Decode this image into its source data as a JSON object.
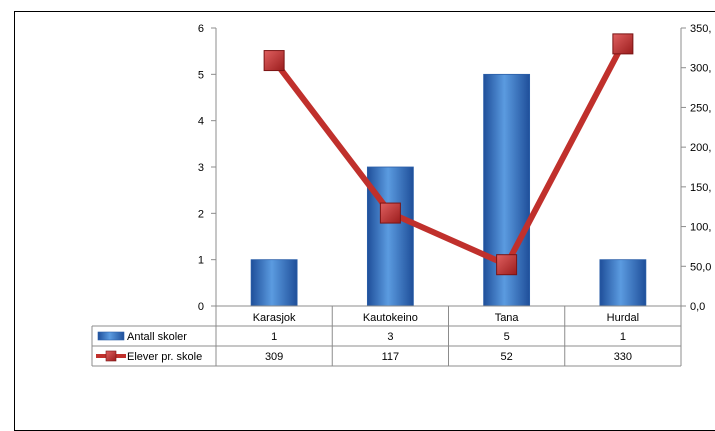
{
  "chart_data": {
    "type": "bar",
    "categories": [
      "Karasjok",
      "Kautokeino",
      "Tana",
      "Hurdal"
    ],
    "series": [
      {
        "name": "Antall skoler",
        "type": "bar",
        "axis": "left",
        "values": [
          1,
          3,
          5,
          1
        ],
        "color": "#3a78c8",
        "table_values": [
          "1",
          "3",
          "5",
          "1"
        ]
      },
      {
        "name": "Elever pr. skole",
        "type": "line",
        "axis": "right",
        "values": [
          309,
          117,
          52,
          330
        ],
        "color": "#c0302c",
        "table_values": [
          "309",
          "117",
          "52",
          "330"
        ]
      }
    ],
    "y_left": {
      "ylim": [
        0,
        6
      ],
      "ticks": [
        "0",
        "1",
        "2",
        "3",
        "4",
        "5",
        "6"
      ]
    },
    "y_right": {
      "ylim": [
        0,
        350
      ],
      "ticks": [
        "0,0",
        "50,0",
        "100,",
        "150,",
        "200,",
        "250,",
        "300,",
        "350,"
      ]
    },
    "grid": false,
    "legend": "data-table"
  }
}
